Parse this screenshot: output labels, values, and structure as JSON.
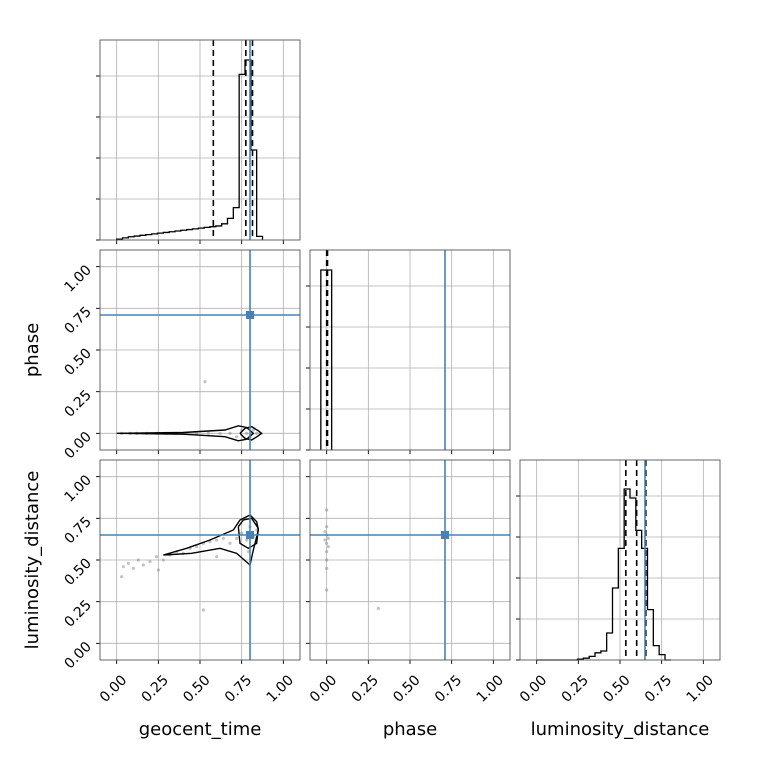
{
  "chart_data": {
    "type": "corner",
    "parameters": [
      "geocent_time",
      "phase",
      "luminosity_distance"
    ],
    "axis_labels": {
      "x": [
        "geocent_time",
        "phase",
        "luminosity_distance"
      ],
      "y": [
        "phase",
        "luminosity_distance"
      ]
    },
    "ticks": [
      0.0,
      0.25,
      0.5,
      0.75,
      1.0
    ],
    "tick_labels": [
      "0.00",
      "0.25",
      "0.50",
      "0.75",
      "1.00"
    ],
    "lim": [
      -0.1,
      1.1
    ],
    "grid": true,
    "truth_color": "#4682b4",
    "line_color": "#000000",
    "truths": {
      "geocent_time": 0.8,
      "phase": 0.71,
      "luminosity_distance": 0.65
    },
    "histograms": [
      {
        "parameter": "geocent_time",
        "bin_edges": [
          0.0,
          0.035,
          0.07,
          0.105,
          0.14,
          0.175,
          0.21,
          0.245,
          0.28,
          0.315,
          0.35,
          0.385,
          0.42,
          0.455,
          0.49,
          0.525,
          0.56,
          0.595,
          0.63,
          0.665,
          0.7,
          0.735,
          0.77,
          0.805,
          0.84,
          0.875
        ],
        "counts": [
          0.005,
          0.012,
          0.018,
          0.022,
          0.026,
          0.03,
          0.034,
          0.038,
          0.042,
          0.046,
          0.05,
          0.054,
          0.058,
          0.062,
          0.066,
          0.07,
          0.074,
          0.078,
          0.09,
          0.12,
          0.18,
          0.92,
          1.0,
          0.5,
          0.02
        ],
        "quantiles": [
          0.58,
          0.775,
          0.815
        ]
      },
      {
        "parameter": "phase",
        "bin_edges": [
          -0.035,
          -0.003,
          0.03
        ],
        "counts": [
          1.0,
          1.0
        ],
        "quantiles": [
          0.0,
          0.005
        ]
      },
      {
        "parameter": "luminosity_distance",
        "bin_edges": [
          0.0,
          0.035,
          0.07,
          0.105,
          0.14,
          0.175,
          0.21,
          0.245,
          0.28,
          0.315,
          0.35,
          0.385,
          0.42,
          0.455,
          0.49,
          0.525,
          0.56,
          0.595,
          0.63,
          0.665,
          0.7,
          0.735,
          0.77,
          0.805
        ],
        "counts": [
          0.0,
          0.0,
          0.0,
          0.0,
          0.0,
          0.0,
          0.0,
          0.005,
          0.01,
          0.02,
          0.04,
          0.05,
          0.15,
          0.4,
          0.62,
          0.95,
          0.9,
          0.72,
          0.62,
          0.28,
          0.08,
          0.03,
          0.0
        ],
        "quantiles": [
          0.535,
          0.6,
          0.655
        ]
      }
    ],
    "scatter_panels": [
      {
        "x_param": "geocent_time",
        "y_param": "phase",
        "points": [
          [
            0.03,
            0.0
          ],
          [
            0.08,
            0.0
          ],
          [
            0.12,
            0.0
          ],
          [
            0.18,
            0.0
          ],
          [
            0.24,
            0.0
          ],
          [
            0.3,
            0.0
          ],
          [
            0.36,
            0.0
          ],
          [
            0.42,
            0.0
          ],
          [
            0.48,
            0.0
          ],
          [
            0.55,
            0.0
          ],
          [
            0.62,
            0.0
          ],
          [
            0.68,
            0.0
          ],
          [
            0.72,
            -0.02
          ],
          [
            0.75,
            0.02
          ],
          [
            0.78,
            0.0
          ],
          [
            0.8,
            -0.02
          ],
          [
            0.82,
            0.02
          ],
          [
            0.84,
            0.0
          ],
          [
            0.86,
            0.0
          ],
          [
            0.53,
            0.31
          ]
        ],
        "contours": [
          [
            [
              0.0,
              0.0
            ],
            [
              0.4,
              0.005
            ],
            [
              0.65,
              0.02
            ],
            [
              0.73,
              0.045
            ],
            [
              0.78,
              0.035
            ],
            [
              0.82,
              0.0
            ],
            [
              0.78,
              -0.035
            ],
            [
              0.73,
              -0.045
            ],
            [
              0.65,
              -0.02
            ],
            [
              0.4,
              -0.005
            ],
            [
              0.0,
              0.0
            ]
          ],
          [
            [
              0.74,
              0.0
            ],
            [
              0.77,
              0.03
            ],
            [
              0.81,
              0.04
            ],
            [
              0.85,
              0.015
            ],
            [
              0.87,
              0.0
            ],
            [
              0.85,
              -0.015
            ],
            [
              0.81,
              -0.04
            ],
            [
              0.77,
              -0.03
            ],
            [
              0.74,
              0.0
            ]
          ]
        ]
      },
      {
        "x_param": "geocent_time",
        "y_param": "luminosity_distance",
        "points": [
          [
            0.04,
            0.46
          ],
          [
            0.07,
            0.48
          ],
          [
            0.1,
            0.45
          ],
          [
            0.13,
            0.5
          ],
          [
            0.16,
            0.47
          ],
          [
            0.2,
            0.49
          ],
          [
            0.24,
            0.52
          ],
          [
            0.28,
            0.5
          ],
          [
            0.32,
            0.53
          ],
          [
            0.36,
            0.55
          ],
          [
            0.4,
            0.54
          ],
          [
            0.44,
            0.57
          ],
          [
            0.48,
            0.58
          ],
          [
            0.52,
            0.6
          ],
          [
            0.56,
            0.61
          ],
          [
            0.6,
            0.62
          ],
          [
            0.64,
            0.63
          ],
          [
            0.68,
            0.6
          ],
          [
            0.72,
            0.63
          ],
          [
            0.75,
            0.66
          ],
          [
            0.78,
            0.62
          ],
          [
            0.8,
            0.7
          ],
          [
            0.82,
            0.64
          ],
          [
            0.84,
            0.68
          ],
          [
            0.79,
            0.55
          ],
          [
            0.77,
            0.75
          ],
          [
            0.03,
            0.4
          ],
          [
            0.25,
            0.44
          ],
          [
            0.6,
            0.52
          ],
          [
            0.52,
            0.2
          ]
        ],
        "contours": [
          [
            [
              0.28,
              0.53
            ],
            [
              0.45,
              0.54
            ],
            [
              0.62,
              0.57
            ],
            [
              0.72,
              0.54
            ],
            [
              0.8,
              0.47
            ],
            [
              0.82,
              0.56
            ],
            [
              0.85,
              0.68
            ],
            [
              0.84,
              0.73
            ],
            [
              0.8,
              0.77
            ],
            [
              0.74,
              0.74
            ],
            [
              0.7,
              0.68
            ],
            [
              0.56,
              0.62
            ],
            [
              0.42,
              0.57
            ],
            [
              0.28,
              0.53
            ]
          ],
          [
            [
              0.73,
              0.7
            ],
            [
              0.76,
              0.74
            ],
            [
              0.81,
              0.75
            ],
            [
              0.85,
              0.69
            ],
            [
              0.84,
              0.6
            ],
            [
              0.79,
              0.57
            ],
            [
              0.74,
              0.6
            ],
            [
              0.73,
              0.7
            ]
          ]
        ]
      },
      {
        "x_param": "phase",
        "y_param": "luminosity_distance",
        "points": [
          [
            0.0,
            0.5
          ],
          [
            0.0,
            0.55
          ],
          [
            0.0,
            0.6
          ],
          [
            0.0,
            0.65
          ],
          [
            0.0,
            0.7
          ],
          [
            0.0,
            0.8
          ],
          [
            -0.01,
            0.62
          ],
          [
            0.01,
            0.58
          ],
          [
            0.0,
            0.45
          ],
          [
            0.0,
            0.32
          ],
          [
            0.31,
            0.21
          ],
          [
            -0.01,
            0.67
          ],
          [
            0.01,
            0.63
          ]
        ],
        "contours": []
      }
    ]
  }
}
